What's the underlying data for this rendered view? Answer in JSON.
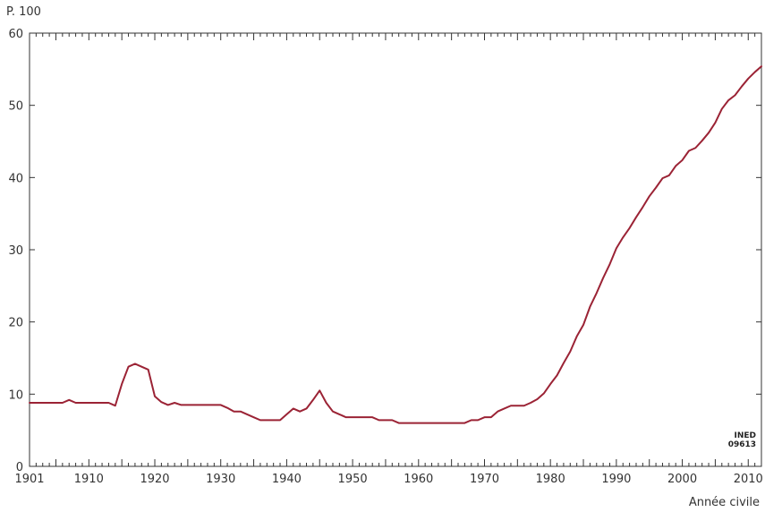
{
  "chart_data": {
    "type": "line",
    "ylabel": "P. 100",
    "xlabel": "Année civile",
    "credit": [
      "INED",
      "09613"
    ],
    "xlim": [
      1901,
      2012
    ],
    "ylim": [
      0,
      60
    ],
    "x_ticks": [
      1901,
      1910,
      1920,
      1930,
      1940,
      1950,
      1960,
      1970,
      1980,
      1990,
      2000,
      2010
    ],
    "y_ticks": [
      0,
      10,
      20,
      30,
      40,
      50,
      60
    ],
    "grid": false,
    "line_color": "#9b2335",
    "series": [
      {
        "x": [
          1901,
          1902,
          1903,
          1904,
          1905,
          1906,
          1907,
          1908,
          1909,
          1910,
          1911,
          1912,
          1913,
          1914,
          1915,
          1916,
          1917,
          1918,
          1919,
          1920,
          1921,
          1922,
          1923,
          1924,
          1925,
          1926,
          1927,
          1928,
          1929,
          1930,
          1931,
          1932,
          1933,
          1934,
          1935,
          1936,
          1937,
          1938,
          1939,
          1940,
          1941,
          1942,
          1943,
          1944,
          1945,
          1946,
          1947,
          1948,
          1949,
          1950,
          1951,
          1952,
          1953,
          1954,
          1955,
          1956,
          1957,
          1958,
          1959,
          1960,
          1961,
          1962,
          1963,
          1964,
          1965,
          1966,
          1967,
          1968,
          1969,
          1970,
          1971,
          1972,
          1973,
          1974,
          1975,
          1976,
          1977,
          1978,
          1979,
          1980,
          1981,
          1982,
          1983,
          1984,
          1985,
          1986,
          1987,
          1988,
          1989,
          1990,
          1991,
          1992,
          1993,
          1994,
          1995,
          1996,
          1997,
          1998,
          1999,
          2000,
          2001,
          2002,
          2003,
          2004,
          2005,
          2006,
          2007,
          2008,
          2009,
          2010,
          2011,
          2012
        ],
        "values": [
          8.8,
          8.8,
          8.8,
          8.8,
          8.8,
          8.8,
          9.2,
          8.8,
          8.8,
          8.8,
          8.8,
          8.8,
          8.8,
          8.4,
          11.4,
          13.8,
          14.2,
          13.8,
          13.4,
          9.7,
          8.9,
          8.5,
          8.8,
          8.5,
          8.5,
          8.5,
          8.5,
          8.5,
          8.5,
          8.5,
          8.1,
          7.6,
          7.6,
          7.2,
          6.8,
          6.4,
          6.4,
          6.4,
          6.4,
          7.2,
          8.0,
          7.6,
          8.0,
          9.2,
          10.5,
          8.8,
          7.6,
          7.2,
          6.8,
          6.8,
          6.8,
          6.8,
          6.8,
          6.4,
          6.4,
          6.4,
          6.0,
          6.0,
          6.0,
          6.0,
          6.0,
          6.0,
          6.0,
          6.0,
          6.0,
          6.0,
          6.0,
          6.4,
          6.4,
          6.8,
          6.8,
          7.6,
          8.0,
          8.4,
          8.4,
          8.4,
          8.8,
          9.3,
          10.1,
          11.4,
          12.6,
          14.3,
          15.9,
          18.0,
          19.6,
          22.1,
          24.0,
          26.1,
          28.0,
          30.2,
          31.7,
          33.0,
          34.5,
          35.9,
          37.4,
          38.6,
          39.9,
          40.3,
          41.6,
          42.4,
          43.7,
          44.1,
          45.1,
          46.2,
          47.6,
          49.5,
          50.7,
          51.4,
          52.6,
          53.7,
          54.6,
          55.4
        ]
      }
    ]
  }
}
